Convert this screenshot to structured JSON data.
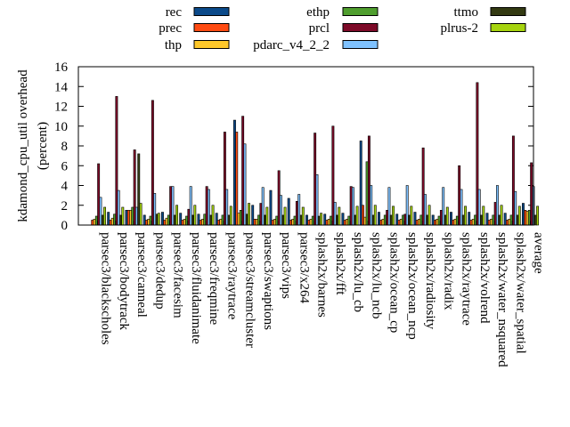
{
  "chart_data": {
    "type": "bar",
    "title": "",
    "xlabel": "",
    "ylabel": "kdamond_cpu_util overhead (percent)",
    "ylabel_lines": [
      "kdamond_cpu_util overhead",
      "(percent)"
    ],
    "ylim": [
      0,
      16
    ],
    "yticks": [
      "0",
      "2",
      "4",
      "6",
      "8",
      "10",
      "12",
      "14",
      "16"
    ],
    "grid": false,
    "legend_position": "top",
    "categories": [
      "parsec3/blackscholes",
      "parsec3/bodytrack",
      "parsec3/canneal",
      "parsec3/dedup",
      "parsec3/facesim",
      "parsec3/fluidanimate",
      "parsec3/freqmine",
      "parsec3/raytrace",
      "parsec3/streamcluster",
      "parsec3/swaptions",
      "parsec3/vips",
      "parsec3/x264",
      "splash2x/barnes",
      "splash2x/fft",
      "splash2x/lu_cb",
      "splash2x/lu_ncb",
      "splash2x/ocean_cp",
      "splash2x/ocean_ncp",
      "splash2x/radiosity",
      "splash2x/radix",
      "splash2x/raytrace",
      "splash2x/volrend",
      "splash2x/water_nsquared",
      "splash2x/water_spatial",
      "average"
    ],
    "series": [
      {
        "name": "rec",
        "color": "#0b4a8a",
        "values": [
          0.0,
          1.3,
          1.5,
          1.0,
          1.3,
          1.2,
          1.1,
          1.2,
          10.6,
          2.0,
          3.5,
          2.7,
          1.0,
          1.1,
          1.2,
          8.5,
          1.3,
          1.1,
          1.3,
          1.0,
          1.3,
          1.3,
          1.2,
          1.2,
          2.2
        ]
      },
      {
        "name": "prec",
        "color": "#ff4b12",
        "values": [
          0.5,
          0.5,
          1.5,
          0.5,
          0.5,
          0.5,
          0.5,
          0.5,
          9.4,
          0.6,
          0.5,
          0.5,
          0.5,
          0.5,
          0.5,
          2.0,
          0.5,
          0.5,
          0.5,
          0.5,
          0.5,
          0.5,
          0.5,
          0.5,
          1.5
        ]
      },
      {
        "name": "thp",
        "color": "#ffc82a",
        "values": [
          0.6,
          0.7,
          1.5,
          0.6,
          0.7,
          0.6,
          0.6,
          0.6,
          1.2,
          0.6,
          0.6,
          0.6,
          0.6,
          0.6,
          0.6,
          0.8,
          0.6,
          0.6,
          0.6,
          0.6,
          0.6,
          0.6,
          0.6,
          0.6,
          1.4
        ]
      },
      {
        "name": "ethp",
        "color": "#4f9e2e",
        "values": [
          0.9,
          1.1,
          1.8,
          0.9,
          1.0,
          0.9,
          1.1,
          1.0,
          1.5,
          1.0,
          0.9,
          0.9,
          0.9,
          0.9,
          0.9,
          6.4,
          1.0,
          1.0,
          1.0,
          0.9,
          0.9,
          1.0,
          1.0,
          1.0,
          1.5
        ]
      },
      {
        "name": "prcl",
        "color": "#7d0a28",
        "values": [
          6.2,
          13.0,
          7.6,
          12.6,
          3.9,
          1.6,
          3.9,
          9.4,
          11.0,
          2.2,
          5.5,
          2.4,
          9.3,
          10.0,
          3.9,
          9.0,
          1.5,
          1.1,
          7.8,
          1.5,
          6.0,
          14.4,
          2.3,
          9.0,
          6.3
        ]
      },
      {
        "name": "pdarc_v4_2_2",
        "color": "#7fc2ff",
        "values": [
          2.8,
          3.5,
          1.8,
          3.2,
          3.9,
          3.9,
          3.6,
          3.6,
          8.2,
          3.8,
          3.0,
          3.1,
          5.1,
          2.3,
          3.8,
          4.0,
          3.8,
          4.0,
          3.1,
          3.8,
          3.6,
          3.6,
          4.0,
          3.4,
          3.9
        ]
      },
      {
        "name": "ttmo",
        "color": "#333a12",
        "values": [
          1.0,
          1.0,
          7.2,
          1.1,
          1.0,
          1.0,
          1.0,
          1.0,
          1.1,
          1.0,
          1.0,
          1.0,
          0.9,
          1.0,
          1.0,
          1.0,
          1.0,
          1.0,
          1.0,
          1.0,
          1.0,
          1.0,
          1.0,
          1.0,
          1.0
        ]
      },
      {
        "name": "plrus-2",
        "color": "#a6d40e",
        "values": [
          1.8,
          1.8,
          2.2,
          1.2,
          2.0,
          2.0,
          2.0,
          1.9,
          2.2,
          1.8,
          1.8,
          1.8,
          1.2,
          1.8,
          1.9,
          2.0,
          1.9,
          1.9,
          2.0,
          1.8,
          1.9,
          1.9,
          2.0,
          1.9,
          1.9
        ]
      }
    ]
  }
}
